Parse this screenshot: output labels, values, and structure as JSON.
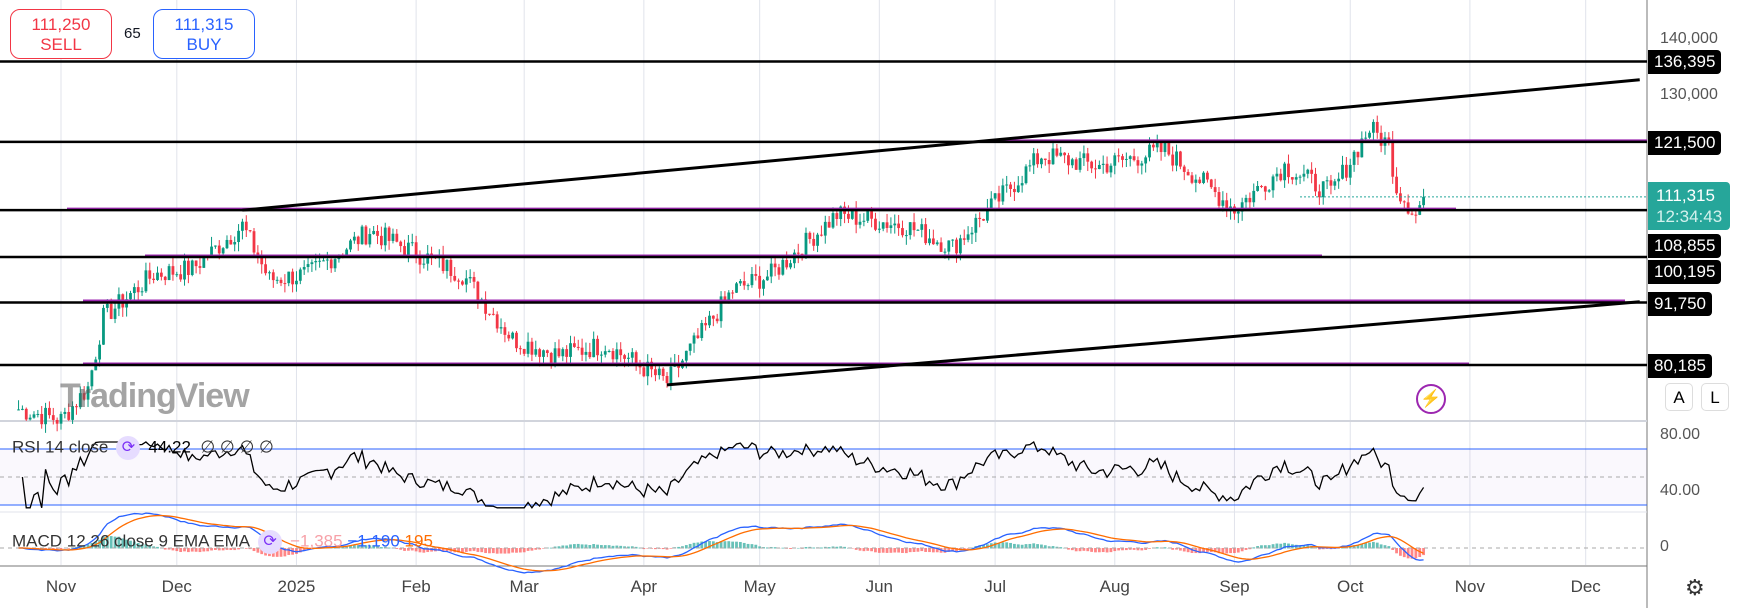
{
  "trade": {
    "sell_price": "111,250",
    "sell_label": "SELL",
    "spread": "65",
    "buy_price": "111,315",
    "buy_label": "BUY"
  },
  "price_axis": {
    "ticks": [
      "140,000",
      "130,000"
    ],
    "level_labels": [
      "136,395",
      "121,500",
      "108,855",
      "100,195",
      "91,750",
      "80,185"
    ],
    "current_price": "111,315",
    "countdown": "12:34:43"
  },
  "rsi": {
    "title": "RSI 14 close",
    "value": "44.22",
    "extra": "∅ ∅ ∅ ∅",
    "ticks": [
      "80.00",
      "40.00"
    ],
    "upper": 70,
    "lower": 30
  },
  "macd": {
    "title": "MACD 12 26 close 9 EMA EMA",
    "hist": "−1,385",
    "macd": "−1,190",
    "signal": "195",
    "zero_tick": "0",
    "colors": {
      "hist": "#f7a1a8",
      "macd": "#2962ff",
      "signal": "#ff6d00"
    }
  },
  "watermark": "TradingView",
  "buttons": {
    "auto": "A",
    "log": "L"
  },
  "icons": {
    "alert": "lightning-icon",
    "settings": "gear-icon"
  },
  "chart_data": {
    "type": "candlestick",
    "ylim": [
      75000,
      141000
    ],
    "x_ticks": [
      "Nov",
      "Dec",
      "2025",
      "Feb",
      "Mar",
      "Apr",
      "May",
      "Jun",
      "Jul",
      "Aug",
      "Sep",
      "Oct",
      "Nov",
      "Dec"
    ],
    "x_tick_days": [
      31,
      61,
      92,
      123,
      151,
      182,
      212,
      243,
      273,
      304,
      335,
      365,
      396,
      426
    ],
    "close_keypoints_day_value": [
      [
        20,
        72000
      ],
      [
        31,
        70000
      ],
      [
        38,
        76000
      ],
      [
        42,
        89000
      ],
      [
        55,
        97000
      ],
      [
        65,
        98000
      ],
      [
        78,
        106000
      ],
      [
        85,
        96000
      ],
      [
        95,
        97000
      ],
      [
        111,
        105000
      ],
      [
        120,
        102000
      ],
      [
        135,
        97000
      ],
      [
        148,
        85000
      ],
      [
        160,
        82000
      ],
      [
        172,
        84000
      ],
      [
        188,
        77000
      ],
      [
        205,
        94000
      ],
      [
        215,
        97000
      ],
      [
        232,
        108000
      ],
      [
        250,
        106000
      ],
      [
        262,
        102000
      ],
      [
        270,
        108000
      ],
      [
        285,
        119000
      ],
      [
        300,
        117000
      ],
      [
        317,
        120000
      ],
      [
        335,
        109000
      ],
      [
        348,
        117000
      ],
      [
        360,
        112000
      ],
      [
        370,
        124000
      ],
      [
        375,
        121000
      ],
      [
        377,
        113000
      ],
      [
        382,
        108000
      ],
      [
        384,
        111315
      ]
    ],
    "horizontal_levels": [
      136395,
      121500,
      108855,
      100195,
      91750,
      80185
    ],
    "purple_zones": [
      121500,
      108855,
      100195,
      91750,
      80185
    ],
    "trendlines": [
      [
        [
          78,
          108855
        ],
        [
          440,
          133000
        ]
      ],
      [
        [
          188,
          76500
        ],
        [
          440,
          91900
        ]
      ]
    ],
    "current": 111315
  }
}
